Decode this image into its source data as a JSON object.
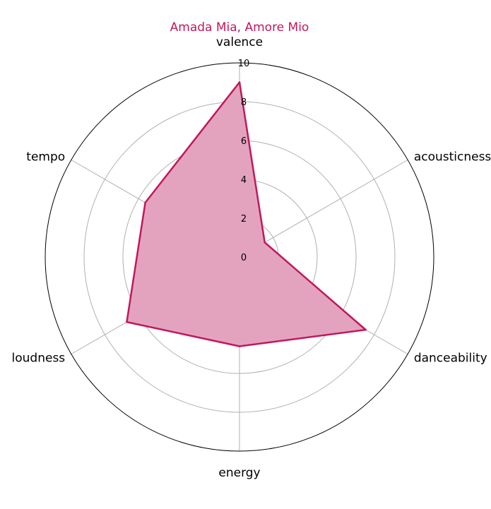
{
  "chart_data": {
    "type": "radar",
    "title": "Amada Mia, Amore Mio",
    "axes": [
      "valence",
      "acousticness",
      "danceability",
      "energy",
      "loudness",
      "tempo"
    ],
    "series": [
      {
        "values": [
          9.0,
          1.5,
          7.5,
          4.6,
          6.7,
          5.6
        ]
      }
    ],
    "rlim": [
      0,
      10
    ],
    "rticks": [
      "0",
      "2",
      "4",
      "6",
      "8",
      "10"
    ],
    "grid": true,
    "colors": {
      "line": "#c2185b",
      "fill": "#e3a3bf",
      "title": "#c2185b",
      "grid": "#b0b0b0",
      "frame": "#000000"
    }
  }
}
